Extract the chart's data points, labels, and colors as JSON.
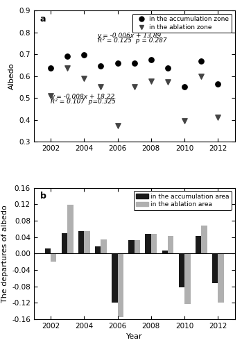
{
  "years_scatter": [
    2002,
    2003,
    2004,
    2005,
    2006,
    2007,
    2008,
    2009,
    2010,
    2011,
    2012
  ],
  "accum_albedo": [
    0.636,
    0.692,
    0.697,
    0.648,
    0.66,
    0.66,
    0.675,
    0.636,
    0.55,
    0.668,
    0.565
  ],
  "ablat_albedo": [
    0.51,
    0.638,
    0.588,
    0.553,
    0.375,
    0.553,
    0.578,
    0.573,
    0.397,
    0.6,
    0.413
  ],
  "trend_blue_eq": "y = -0.006x + 13.89",
  "trend_blue_r2": "R² = 0.125  p = 0.287",
  "trend_red_eq": "y = -0.008x + 18.22",
  "trend_red_r2": "R² = 0.107  p=0.325",
  "ylim_a": [
    0.3,
    0.9
  ],
  "yticks_a": [
    0.3,
    0.4,
    0.5,
    0.6,
    0.7,
    0.8,
    0.9
  ],
  "ylabel_a": "Albedo",
  "legend_a_labels": [
    "in the accumulation zone",
    "in the ablation zone"
  ],
  "panel_a_label": "a",
  "accum_depart": [
    0.012,
    0.05,
    0.055,
    0.018,
    -0.12,
    0.033,
    0.048,
    0.008,
    -0.082,
    0.042,
    -0.072
  ],
  "ablat_depart": [
    -0.02,
    0.118,
    0.055,
    0.035,
    -0.155,
    0.033,
    0.048,
    0.043,
    -0.123,
    0.068,
    -0.12
  ],
  "years_bar": [
    2002,
    2003,
    2004,
    2005,
    2006,
    2007,
    2008,
    2009,
    2010,
    2011,
    2012
  ],
  "ylim_b": [
    -0.16,
    0.16
  ],
  "yticks_b": [
    -0.16,
    -0.12,
    -0.08,
    -0.04,
    0.0,
    0.04,
    0.08,
    0.12,
    0.16
  ],
  "ylabel_b": "The departures of albedo",
  "xlabel_b": "Year",
  "legend_b_labels": [
    "in the accumulation area",
    "in the ablation area"
  ],
  "panel_b_label": "b",
  "bar_width": 0.35,
  "accum_color": "#1a1a1a",
  "ablat_color": "#b0b0b0",
  "blue_color": "#4466dd",
  "red_color": "#dd3333",
  "xticks": [
    2002,
    2004,
    2006,
    2008,
    2010,
    2012
  ],
  "xlim": [
    2001.0,
    2013.0
  ]
}
